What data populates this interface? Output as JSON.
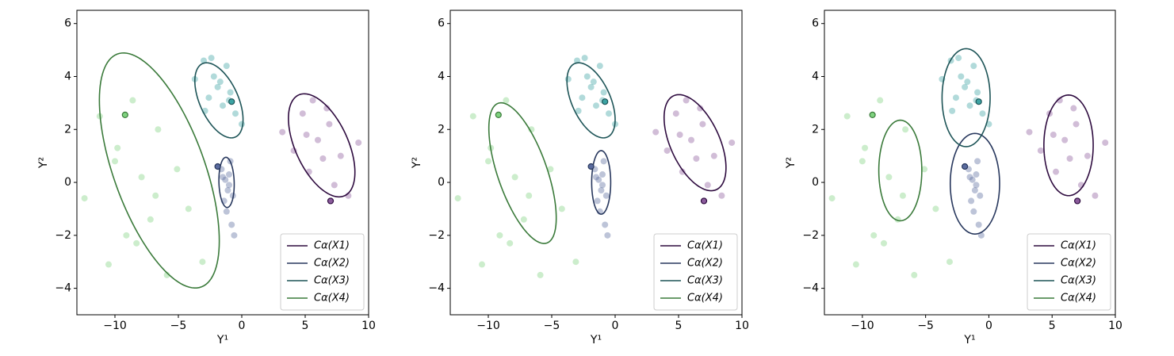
{
  "chart_data": [
    {
      "type": "scatter-ellipse",
      "xlabel": "Y¹",
      "ylabel": "Y²",
      "xlim": [
        -13,
        10
      ],
      "ylim": [
        -5,
        6.5
      ],
      "xticks": [
        {
          "value": -10,
          "label": "−10"
        },
        {
          "value": -5,
          "label": "−5"
        },
        0,
        5,
        10
      ],
      "yticks": [
        {
          "value": -4,
          "label": "−4"
        },
        {
          "value": -2,
          "label": "−2"
        },
        0,
        2,
        4,
        6
      ],
      "legend": "lower right",
      "series": [
        {
          "name": "Cα(X1)",
          "color": "#2e0b3f",
          "point_color": "#8b5b9c",
          "x": [
            3.2,
            4.1,
            4.8,
            5.3,
            5.6,
            6.0,
            6.4,
            6.9,
            7.3,
            7.8,
            8.4,
            9.2,
            5.1,
            6.7
          ],
          "y": [
            1.9,
            1.2,
            2.6,
            0.4,
            3.1,
            1.6,
            0.9,
            2.2,
            -0.1,
            1.0,
            -0.5,
            1.5,
            1.8,
            2.8
          ],
          "anchor": [
            7.0,
            -0.7
          ],
          "ellipse": {
            "center": [
              6.3,
              1.4
            ],
            "axes": [
              2.9,
              1.5
            ],
            "angle": -30
          }
        },
        {
          "name": "Cα(X2)",
          "color": "#27375d",
          "point_color": "#5a6b9e",
          "x": [
            -1.6,
            -1.3,
            -1.1,
            -0.9,
            -1.4,
            -1.0,
            -0.7,
            -1.2,
            -0.8,
            -1.5,
            -0.6,
            -1.0
          ],
          "y": [
            0.5,
            0.1,
            -0.3,
            0.8,
            -0.7,
            0.3,
            -0.5,
            -1.1,
            -1.6,
            0.2,
            -2.0,
            -0.1
          ],
          "anchor": [
            -1.9,
            0.6
          ],
          "ellipse": {
            "center": [
              -1.2,
              0.0
            ],
            "axes": [
              0.95,
              0.6
            ],
            "angle": 95
          }
        },
        {
          "name": "Cα(X3)",
          "color": "#1d5457",
          "point_color": "#3ca3a3",
          "x": [
            -3.7,
            -3.0,
            -2.6,
            -2.2,
            -1.9,
            -1.5,
            -1.2,
            -0.9,
            -0.5,
            0.0,
            -2.4,
            -1.7,
            -1.0,
            -2.9
          ],
          "y": [
            3.9,
            4.6,
            3.2,
            4.0,
            3.6,
            2.9,
            4.4,
            3.4,
            2.6,
            2.2,
            4.7,
            3.8,
            3.1,
            2.7
          ],
          "anchor": [
            -0.8,
            3.05
          ],
          "ellipse": {
            "center": [
              -1.8,
              3.1
            ],
            "axes": [
              2.1,
              1.1
            ],
            "angle": -30
          }
        },
        {
          "name": "Cα(X4)",
          "color": "#3a7a3a",
          "point_color": "#7fd27f",
          "x": [
            -12.4,
            -11.2,
            -10.5,
            -9.8,
            -9.1,
            -8.6,
            -7.9,
            -7.2,
            -6.6,
            -5.9,
            -5.1,
            -4.2,
            -3.1,
            -8.3,
            -10.0,
            -6.8
          ],
          "y": [
            -0.6,
            2.5,
            -3.1,
            1.3,
            -2.0,
            3.1,
            0.2,
            -1.4,
            2.0,
            -3.5,
            0.5,
            -1.0,
            -3.0,
            -2.3,
            0.8,
            -0.5
          ],
          "anchor": [
            -9.2,
            2.55
          ],
          "ellipse": {
            "center": [
              -6.5,
              0.45
            ],
            "axes": [
              5.8,
              2.9
            ],
            "angle": -42
          }
        }
      ]
    },
    {
      "type": "scatter-ellipse",
      "xlabel": "Y¹",
      "ylabel": "Y²",
      "xlim": [
        -13,
        10
      ],
      "ylim": [
        -5,
        6.5
      ],
      "xticks": [
        {
          "value": -10,
          "label": "−10"
        },
        {
          "value": -5,
          "label": "−5"
        },
        0,
        5,
        10
      ],
      "yticks": [
        {
          "value": -4,
          "label": "−4"
        },
        {
          "value": -2,
          "label": "−2"
        },
        0,
        2,
        4,
        6
      ],
      "legend": "lower right",
      "series": [
        {
          "name": "Cα(X1)",
          "color": "#2e0b3f",
          "point_color": "#8b5b9c",
          "x": [
            3.2,
            4.1,
            4.8,
            5.3,
            5.6,
            6.0,
            6.4,
            6.9,
            7.3,
            7.8,
            8.4,
            9.2,
            5.1,
            6.7
          ],
          "y": [
            1.9,
            1.2,
            2.6,
            0.4,
            3.1,
            1.6,
            0.9,
            2.2,
            -0.1,
            1.0,
            -0.5,
            1.5,
            1.8,
            2.8
          ],
          "anchor": [
            7.0,
            -0.7
          ],
          "ellipse": {
            "center": [
              6.3,
              1.5
            ],
            "axes": [
              2.7,
              1.4
            ],
            "angle": -30
          }
        },
        {
          "name": "Cα(X2)",
          "color": "#27375d",
          "point_color": "#5a6b9e",
          "x": [
            -1.6,
            -1.3,
            -1.1,
            -0.9,
            -1.4,
            -1.0,
            -0.7,
            -1.2,
            -0.8,
            -1.5,
            -0.6,
            -1.0
          ],
          "y": [
            0.5,
            0.1,
            -0.3,
            0.8,
            -0.7,
            0.3,
            -0.5,
            -1.1,
            -1.6,
            0.2,
            -2.0,
            -0.1
          ],
          "anchor": [
            -1.9,
            0.6
          ],
          "ellipse": {
            "center": [
              -1.1,
              0.0
            ],
            "axes": [
              1.2,
              0.75
            ],
            "angle": 90
          }
        },
        {
          "name": "Cα(X3)",
          "color": "#1d5457",
          "point_color": "#3ca3a3",
          "x": [
            -3.7,
            -3.0,
            -2.6,
            -2.2,
            -1.9,
            -1.5,
            -1.2,
            -0.9,
            -0.5,
            0.0,
            -2.4,
            -1.7,
            -1.0,
            -2.9
          ],
          "y": [
            3.9,
            4.6,
            3.2,
            4.0,
            3.6,
            2.9,
            4.4,
            3.4,
            2.6,
            2.2,
            4.7,
            3.8,
            3.1,
            2.7
          ],
          "anchor": [
            -0.8,
            3.05
          ],
          "ellipse": {
            "center": [
              -1.9,
              3.1
            ],
            "axes": [
              2.1,
              1.1
            ],
            "angle": -30
          }
        },
        {
          "name": "Cα(X4)",
          "color": "#3a7a3a",
          "point_color": "#7fd27f",
          "x": [
            -12.4,
            -11.2,
            -10.5,
            -9.8,
            -9.1,
            -8.6,
            -7.9,
            -7.2,
            -6.6,
            -5.9,
            -5.1,
            -4.2,
            -3.1,
            -8.3,
            -10.0,
            -6.8
          ],
          "y": [
            -0.6,
            2.5,
            -3.1,
            1.3,
            -2.0,
            3.1,
            0.2,
            -1.4,
            2.0,
            -3.5,
            0.5,
            -1.0,
            -3.0,
            -2.3,
            0.8,
            -0.5
          ],
          "anchor": [
            -9.2,
            2.55
          ],
          "ellipse": {
            "center": [
              -7.3,
              0.35
            ],
            "axes": [
              3.4,
              1.6
            ],
            "angle": -45
          }
        }
      ]
    },
    {
      "type": "scatter-ellipse",
      "xlabel": "Y¹",
      "ylabel": "Y²",
      "xlim": [
        -13,
        10
      ],
      "ylim": [
        -5,
        6.5
      ],
      "xticks": [
        {
          "value": -10,
          "label": "−10"
        },
        {
          "value": -5,
          "label": "−5"
        },
        0,
        5,
        10
      ],
      "yticks": [
        {
          "value": -4,
          "label": "−4"
        },
        {
          "value": -2,
          "label": "−2"
        },
        0,
        2,
        4,
        6
      ],
      "legend": "lower right",
      "series": [
        {
          "name": "Cα(X1)",
          "color": "#2e0b3f",
          "point_color": "#8b5b9c",
          "x": [
            3.2,
            4.1,
            4.8,
            5.3,
            5.6,
            6.0,
            6.4,
            6.9,
            7.3,
            7.8,
            8.4,
            9.2,
            5.1,
            6.7
          ],
          "y": [
            1.9,
            1.2,
            2.6,
            0.4,
            3.1,
            1.6,
            0.9,
            2.2,
            -0.1,
            1.0,
            -0.5,
            1.5,
            1.8,
            2.8
          ],
          "anchor": [
            7.0,
            -0.7
          ],
          "ellipse": {
            "center": [
              6.3,
              1.4
            ],
            "axes": [
              1.9,
              1.95
            ],
            "angle": 90
          }
        },
        {
          "name": "Cα(X2)",
          "color": "#27375d",
          "point_color": "#5a6b9e",
          "x": [
            -1.6,
            -1.3,
            -1.1,
            -0.9,
            -1.4,
            -1.0,
            -0.7,
            -1.2,
            -0.8,
            -1.5,
            -0.6,
            -1.0
          ],
          "y": [
            0.5,
            0.1,
            -0.3,
            0.8,
            -0.7,
            0.3,
            -0.5,
            -1.1,
            -1.6,
            0.2,
            -2.0,
            -0.1
          ],
          "anchor": [
            -1.9,
            0.6
          ],
          "ellipse": {
            "center": [
              -1.1,
              -0.05
            ],
            "axes": [
              1.9,
              1.95
            ],
            "angle": 90
          }
        },
        {
          "name": "Cα(X3)",
          "color": "#1d5457",
          "point_color": "#3ca3a3",
          "x": [
            -3.7,
            -3.0,
            -2.6,
            -2.2,
            -1.9,
            -1.5,
            -1.2,
            -0.9,
            -0.5,
            0.0,
            -2.4,
            -1.7,
            -1.0,
            -2.9
          ],
          "y": [
            3.9,
            4.6,
            3.2,
            4.0,
            3.6,
            2.9,
            4.4,
            3.4,
            2.6,
            2.2,
            4.7,
            3.8,
            3.1,
            2.7
          ],
          "anchor": [
            -0.8,
            3.05
          ],
          "ellipse": {
            "center": [
              -1.8,
              3.2
            ],
            "axes": [
              1.85,
              1.9
            ],
            "angle": 90
          }
        },
        {
          "name": "Cα(X4)",
          "color": "#3a7a3a",
          "point_color": "#7fd27f",
          "x": [
            -12.4,
            -11.2,
            -10.5,
            -9.8,
            -9.1,
            -8.6,
            -7.9,
            -7.2,
            -6.6,
            -5.9,
            -5.1,
            -4.2,
            -3.1,
            -8.3,
            -10.0,
            -6.8
          ],
          "y": [
            -0.6,
            2.5,
            -3.1,
            1.3,
            -2.0,
            3.1,
            0.2,
            -1.4,
            2.0,
            -3.5,
            0.5,
            -1.0,
            -3.0,
            -2.3,
            0.8,
            -0.5
          ],
          "anchor": [
            -9.2,
            2.55
          ],
          "ellipse": {
            "center": [
              -7.0,
              0.45
            ],
            "axes": [
              1.9,
              1.7
            ],
            "angle": 90
          }
        }
      ]
    }
  ]
}
